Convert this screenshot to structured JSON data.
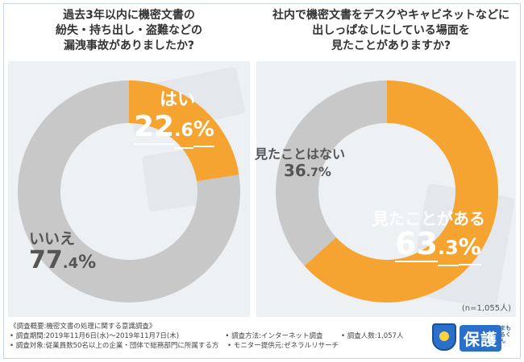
{
  "questions": {
    "q1": "過去3年以内に機密文書の\n紛失・持ち出し・盗難などの\n漏洩事故がありましたか?",
    "q2": "社内で機密文書をデスクやキャビネットなどに\n出しっぱなしにしている場面を\n見たことがありますか?"
  },
  "colors": {
    "orange": "#f5a331",
    "gray": "#c8c8c8"
  },
  "chart_data": [
    {
      "type": "pie",
      "categories": [
        "はい",
        "いいえ"
      ],
      "values": [
        22.6,
        77.4
      ],
      "labels": [
        {
          "name": "はい",
          "int": "22",
          "dec": ".6",
          "sign": "%"
        },
        {
          "name": "いいえ",
          "int": "77",
          "dec": ".4",
          "sign": "%"
        }
      ]
    },
    {
      "type": "pie",
      "categories": [
        "見たことがある",
        "見たことはない"
      ],
      "values": [
        63.3,
        36.7
      ],
      "labels": [
        {
          "name": "見たことがある",
          "int": "63",
          "dec": ".3",
          "sign": "%"
        },
        {
          "name": "見たことはない",
          "int": "36",
          "dec": ".7",
          "sign": "%"
        }
      ]
    }
  ],
  "sample_size": "(n=1,055人)",
  "footer": {
    "title": "《調査概要:機密文書の処理に関する意識調査》",
    "period": "• 調査期間:2019年11月6日(水)〜2019年11月7日(木)",
    "method": "• 調査方法:インターネット調査",
    "count": "• 調査人数:1,057人",
    "target": "• 調査対象:従業員数50名以上の企業・団体で総務部門に所属する方",
    "provider": "• モニター提供元:ゼネラルリサーチ"
  },
  "logo": {
    "text": "保護",
    "sub": "まもるくん"
  }
}
